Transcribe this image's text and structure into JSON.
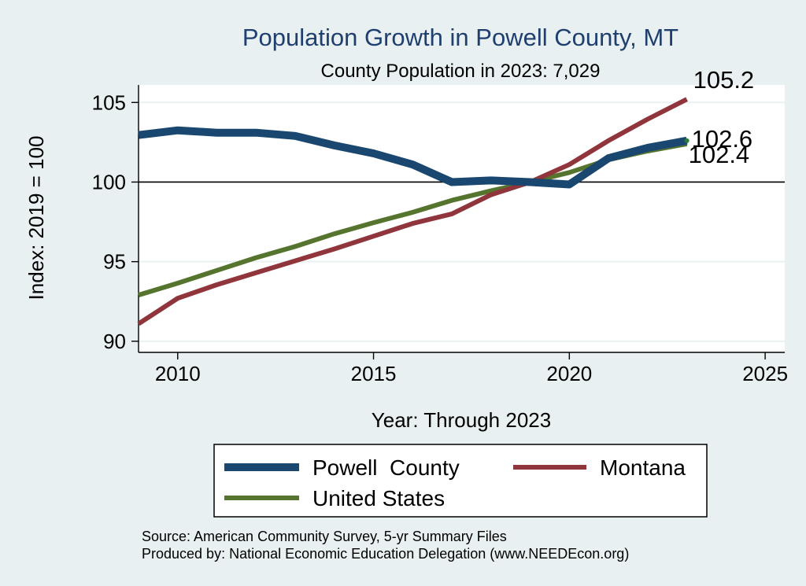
{
  "chart_data": {
    "type": "line",
    "title": "Population Growth in Powell County, MT",
    "subtitle": "County Population in 2023: 7,029",
    "xlabel": "Year: Through 2023",
    "ylabel": "Index: 2019 = 100",
    "xlim": [
      2009,
      2025.5
    ],
    "ylim": [
      89.3,
      106.1
    ],
    "xticks": [
      2010,
      2015,
      2020,
      2025
    ],
    "yticks": [
      90,
      95,
      100,
      105
    ],
    "reference_line": 100,
    "grid": true,
    "legend_position": "bottom",
    "x": [
      2009,
      2010,
      2011,
      2012,
      2013,
      2014,
      2015,
      2016,
      2017,
      2018,
      2019,
      2020,
      2021,
      2022,
      2023
    ],
    "series": [
      {
        "name": "Powell  County",
        "color": "#1a476f",
        "values": [
          102.95,
          103.25,
          103.1,
          103.1,
          102.9,
          102.3,
          101.8,
          101.1,
          100.0,
          100.1,
          100.0,
          99.85,
          101.5,
          102.15,
          102.6
        ],
        "end_label": "102.6"
      },
      {
        "name": "Montana",
        "color": "#90353b",
        "values": [
          91.1,
          92.7,
          93.55,
          94.3,
          95.05,
          95.8,
          96.6,
          97.4,
          98.0,
          99.2,
          100.0,
          101.1,
          102.6,
          103.95,
          105.2
        ],
        "end_label": "105.2"
      },
      {
        "name": "United States",
        "color": "#55752f",
        "values": [
          92.9,
          93.65,
          94.45,
          95.25,
          95.95,
          96.75,
          97.45,
          98.1,
          98.85,
          99.45,
          100.0,
          100.6,
          101.4,
          101.95,
          102.4
        ],
        "end_label": "102.4"
      }
    ],
    "notes": [
      "Source: American Community Survey, 5-yr Summary Files",
      "Produced by: National Economic Education Delegation (www.NEEDEcon.org)"
    ]
  }
}
